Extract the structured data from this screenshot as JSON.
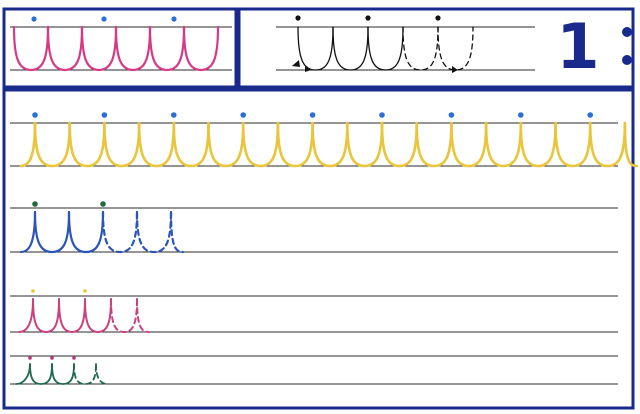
{
  "page": {
    "number": "1"
  },
  "colors": {
    "frame": "#1a2a8c",
    "rule": "#2b2b2b",
    "dot_blue": "#2a6fd6",
    "dot_black": "#111111",
    "dot_green": "#1e6b3c",
    "dot_yellow": "#e7c73a",
    "dot_magenta": "#c2357e",
    "pink": "#d63a86",
    "yellow": "#e8c53a",
    "blue": "#2c55b8",
    "magenta": "#c9407f",
    "teal": "#1f6b4f",
    "guide": "#111111"
  },
  "panels": {
    "sample": {
      "pattern": "cursive-arch-loops",
      "arches": 6,
      "start_dots": 3
    },
    "guide": {
      "pattern": "cursive-arch-loops-with-arrows",
      "solid_arches": 3,
      "dashed_arches": 2,
      "start_dots": 3
    }
  },
  "practice_rows": [
    {
      "size": "large",
      "color": "yellow",
      "dot": "dot_blue",
      "solid_arches": 17,
      "dashed_arches": 0,
      "start_dots": 9
    },
    {
      "size": "medium",
      "color": "blue",
      "dot": "dot_green",
      "solid_arches": 2,
      "dashed_arches": 2,
      "start_dots": 2
    },
    {
      "size": "small",
      "color": "magenta",
      "dot": "dot_yellow",
      "solid_arches": 3,
      "dashed_arches": 1,
      "start_dots": 2
    },
    {
      "size": "tiny",
      "color": "teal",
      "dot": "dot_magenta",
      "solid_arches": 2,
      "dashed_arches": 1,
      "start_dots": 3
    }
  ]
}
